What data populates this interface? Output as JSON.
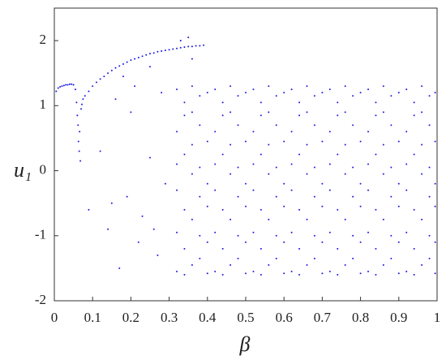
{
  "chart_data": {
    "type": "scatter",
    "x_label": "β",
    "y_label": "u₁",
    "color": "#1a1ae6",
    "xlim": [
      0,
      1
    ],
    "ylim": [
      -2,
      2.5
    ],
    "xticks": [
      0,
      0.1,
      0.2,
      0.3,
      0.4,
      0.5,
      0.6,
      0.7,
      0.8,
      0.9,
      1
    ],
    "yticks": [
      -2,
      -1,
      0,
      1,
      2
    ],
    "x": [
      0.005,
      0.01,
      0.015,
      0.02,
      0.025,
      0.03,
      0.035,
      0.04,
      0.045,
      0.05,
      0.055,
      0.058,
      0.06,
      0.062,
      0.063,
      0.065,
      0.066,
      0.068,
      0.07,
      0.072,
      0.075,
      0.08,
      0.09,
      0.1,
      0.11,
      0.12,
      0.13,
      0.14,
      0.15,
      0.16,
      0.17,
      0.18,
      0.19,
      0.2,
      0.21,
      0.22,
      0.23,
      0.24,
      0.25,
      0.26,
      0.27,
      0.28,
      0.29,
      0.3,
      0.31,
      0.32,
      0.33,
      0.34,
      0.35,
      0.36,
      0.37,
      0.38,
      0.39,
      0.09,
      0.12,
      0.14,
      0.16,
      0.17,
      0.19,
      0.2,
      0.22,
      0.23,
      0.25,
      0.27,
      0.28,
      0.29,
      0.15,
      0.21,
      0.26,
      0.35,
      0.36,
      0.33,
      0.25,
      0.18,
      0.32,
      0.32,
      0.32,
      0.32,
      0.32,
      0.32,
      0.34,
      0.34,
      0.34,
      0.34,
      0.34,
      0.34,
      0.36,
      0.36,
      0.36,
      0.36,
      0.36,
      0.36,
      0.38,
      0.38,
      0.38,
      0.38,
      0.38,
      0.38,
      0.4,
      0.4,
      0.4,
      0.4,
      0.4,
      0.4,
      0.42,
      0.42,
      0.42,
      0.42,
      0.42,
      0.42,
      0.44,
      0.44,
      0.44,
      0.44,
      0.44,
      0.44,
      0.46,
      0.46,
      0.46,
      0.46,
      0.46,
      0.46,
      0.48,
      0.48,
      0.48,
      0.48,
      0.48,
      0.48,
      0.5,
      0.5,
      0.5,
      0.5,
      0.5,
      0.5,
      0.52,
      0.52,
      0.52,
      0.52,
      0.52,
      0.52,
      0.54,
      0.54,
      0.54,
      0.54,
      0.54,
      0.54,
      0.56,
      0.56,
      0.56,
      0.56,
      0.56,
      0.56,
      0.58,
      0.58,
      0.58,
      0.58,
      0.58,
      0.58,
      0.6,
      0.6,
      0.6,
      0.6,
      0.6,
      0.6,
      0.62,
      0.62,
      0.62,
      0.62,
      0.62,
      0.62,
      0.64,
      0.64,
      0.64,
      0.64,
      0.64,
      0.64,
      0.66,
      0.66,
      0.66,
      0.66,
      0.66,
      0.66,
      0.68,
      0.68,
      0.68,
      0.68,
      0.68,
      0.68,
      0.7,
      0.7,
      0.7,
      0.7,
      0.7,
      0.7,
      0.72,
      0.72,
      0.72,
      0.72,
      0.72,
      0.72,
      0.74,
      0.74,
      0.74,
      0.74,
      0.74,
      0.74,
      0.76,
      0.76,
      0.76,
      0.76,
      0.76,
      0.76,
      0.78,
      0.78,
      0.78,
      0.78,
      0.78,
      0.78,
      0.8,
      0.8,
      0.8,
      0.8,
      0.8,
      0.8,
      0.82,
      0.82,
      0.82,
      0.82,
      0.82,
      0.82,
      0.84,
      0.84,
      0.84,
      0.84,
      0.84,
      0.84,
      0.86,
      0.86,
      0.86,
      0.86,
      0.86,
      0.86,
      0.88,
      0.88,
      0.88,
      0.88,
      0.88,
      0.88,
      0.9,
      0.9,
      0.9,
      0.9,
      0.9,
      0.9,
      0.92,
      0.92,
      0.92,
      0.92,
      0.92,
      0.92,
      0.94,
      0.94,
      0.94,
      0.94,
      0.94,
      0.94,
      0.96,
      0.96,
      0.96,
      0.96,
      0.96,
      0.96,
      0.98,
      0.98,
      0.98,
      0.98,
      0.98,
      0.98,
      0.995,
      0.995,
      0.995,
      0.995,
      0.995,
      0.995
    ],
    "values": [
      1.22,
      1.27,
      1.29,
      1.3,
      1.31,
      1.32,
      1.32,
      1.33,
      1.33,
      1.32,
      1.25,
      1.05,
      0.85,
      0.7,
      0.45,
      0.3,
      0.6,
      0.15,
      0.95,
      1.02,
      1.1,
      1.15,
      1.22,
      1.3,
      1.36,
      1.41,
      1.45,
      1.5,
      1.54,
      1.58,
      1.61,
      1.64,
      1.67,
      1.7,
      1.72,
      1.74,
      1.76,
      1.78,
      1.8,
      1.81,
      1.83,
      1.84,
      1.85,
      1.86,
      1.87,
      1.88,
      1.89,
      1.9,
      1.91,
      1.91,
      1.92,
      1.92,
      1.93,
      -0.6,
      0.3,
      -0.9,
      1.1,
      -1.5,
      -0.4,
      0.9,
      -1.1,
      -0.7,
      0.2,
      -1.3,
      1.2,
      -0.2,
      -0.5,
      1.3,
      -0.9,
      2.05,
      1.72,
      2.0,
      1.6,
      1.45,
      1.25,
      0.6,
      -0.3,
      -0.95,
      -1.55,
      0.1,
      1.05,
      0.25,
      -0.6,
      -1.2,
      -1.6,
      0.85,
      1.3,
      0.9,
      -0.05,
      -0.75,
      -1.45,
      0.4,
      0.7,
      -0.4,
      -1.0,
      -1.35,
      1.15,
      0.05,
      1.2,
      0.45,
      -0.2,
      -1.1,
      -1.58,
      -0.55,
      1.25,
      0.6,
      -0.3,
      -0.95,
      -1.55,
      0.1,
      1.05,
      0.25,
      -0.6,
      -1.2,
      -1.6,
      0.85,
      1.3,
      0.9,
      -0.05,
      -0.75,
      -1.45,
      0.4,
      0.7,
      -0.4,
      -1.0,
      -1.35,
      1.15,
      0.05,
      1.2,
      0.45,
      -0.2,
      -1.1,
      -1.58,
      -0.55,
      1.25,
      0.6,
      -0.3,
      -0.95,
      -1.55,
      0.1,
      1.05,
      0.25,
      -0.6,
      -1.2,
      -1.6,
      0.85,
      1.3,
      0.9,
      -0.05,
      -0.75,
      -1.45,
      0.4,
      0.7,
      -0.4,
      -1.0,
      -1.35,
      1.15,
      0.05,
      1.2,
      0.45,
      -0.2,
      -1.1,
      -1.58,
      -0.55,
      1.25,
      0.6,
      -0.3,
      -0.95,
      -1.55,
      0.1,
      1.05,
      0.25,
      -0.6,
      -1.2,
      -1.6,
      0.85,
      1.3,
      0.9,
      -0.05,
      -0.75,
      -1.45,
      0.4,
      0.7,
      -0.4,
      -1.0,
      -1.35,
      1.15,
      0.05,
      1.2,
      0.45,
      -0.2,
      -1.1,
      -1.58,
      -0.55,
      1.25,
      0.6,
      -0.3,
      -0.95,
      -1.55,
      0.1,
      1.05,
      0.25,
      -0.6,
      -1.2,
      -1.6,
      0.85,
      1.3,
      0.9,
      -0.05,
      -0.75,
      -1.45,
      0.4,
      0.7,
      -0.4,
      -1.0,
      -1.35,
      1.15,
      0.05,
      1.2,
      0.45,
      -0.2,
      -1.1,
      -1.58,
      -0.55,
      1.25,
      0.6,
      -0.3,
      -0.95,
      -1.55,
      0.1,
      1.05,
      0.25,
      -0.6,
      -1.2,
      -1.6,
      0.85,
      1.3,
      0.9,
      -0.05,
      -0.75,
      -1.45,
      0.4,
      0.7,
      -0.4,
      -1.0,
      -1.35,
      1.15,
      0.05,
      1.2,
      0.45,
      -0.2,
      -1.1,
      -1.58,
      -0.55,
      1.25,
      0.6,
      -0.3,
      -0.95,
      -1.55,
      0.1,
      1.05,
      0.25,
      -0.6,
      -1.2,
      -1.6,
      0.85,
      1.3,
      0.9,
      -0.05,
      -0.75,
      -1.45,
      0.4,
      0.7,
      -0.4,
      -1.0,
      -1.35,
      1.15,
      0.05,
      1.2,
      0.45,
      -0.2,
      -1.1,
      -1.58,
      -0.55
    ]
  }
}
